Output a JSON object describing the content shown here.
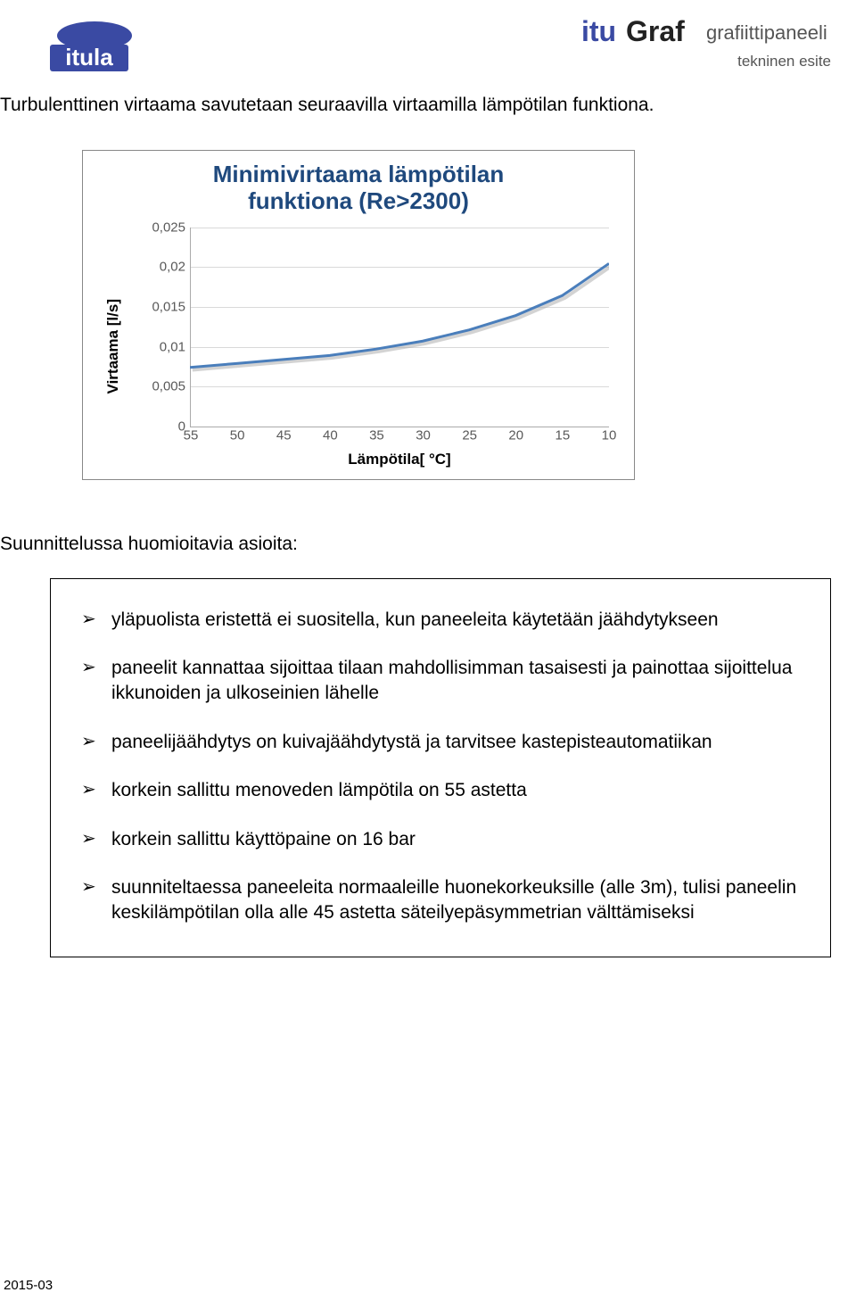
{
  "header": {
    "logo_left_name": "itula",
    "logo_right_name": "ituGraf",
    "product_line": "grafiittipaneeli",
    "doc_type": "tekninen esite"
  },
  "intro": "Turbulenttinen virtaama savutetaan seuraavilla virtaamilla lämpötilan funktiona.",
  "chart": {
    "type": "line",
    "title_line1": "Minimivirtaama lämpötilan",
    "title_line2": "funktiona (Re>2300)",
    "title_color": "#1f497d",
    "title_fontsize": 26,
    "y_axis_label": "Virtaama [l/s]",
    "x_axis_label": "Lämpötila[ °C]",
    "background_color": "#ffffff",
    "grid_color": "#d9d9d9",
    "axis_color": "#aaaaaa",
    "tick_font_color": "#595959",
    "line_color": "#4a7ebb",
    "line_shadow_color": "#a8a8a8",
    "line_width": 3,
    "ylim": [
      0,
      0.025
    ],
    "ytick_step": 0.005,
    "y_ticks": [
      "0",
      "0,005",
      "0,01",
      "0,015",
      "0,02",
      "0,025"
    ],
    "x_ticks": [
      "55",
      "50",
      "45",
      "40",
      "35",
      "30",
      "25",
      "20",
      "15",
      "10"
    ],
    "x_values": [
      55,
      50,
      45,
      40,
      35,
      30,
      25,
      20,
      15,
      10
    ],
    "y_values": [
      0.0075,
      0.008,
      0.0085,
      0.009,
      0.0098,
      0.0108,
      0.0122,
      0.014,
      0.0165,
      0.0205
    ]
  },
  "section_heading": "Suunnittelussa huomioitavia asioita:",
  "bullets": [
    "yläpuolista eristettä ei suositella, kun paneeleita käytetään jäähdytykseen",
    "paneelit kannattaa sijoittaa tilaan mahdollisimman tasaisesti ja painottaa sijoittelua ikkunoiden ja ulkoseinien lähelle",
    "paneelijäähdytys on kuivajäähdytystä ja tarvitsee kastepisteautomatiikan",
    "korkein sallittu menoveden lämpötila on 55 astetta",
    "korkein sallittu käyttöpaine on 16 bar",
    "suunniteltaessa paneeleita normaaleille huonekorkeuksille (alle 3m), tulisi paneelin keskilämpötilan olla alle 45 astetta säteilyepäsymmetrian välttämiseksi"
  ],
  "footer": "2015-03"
}
